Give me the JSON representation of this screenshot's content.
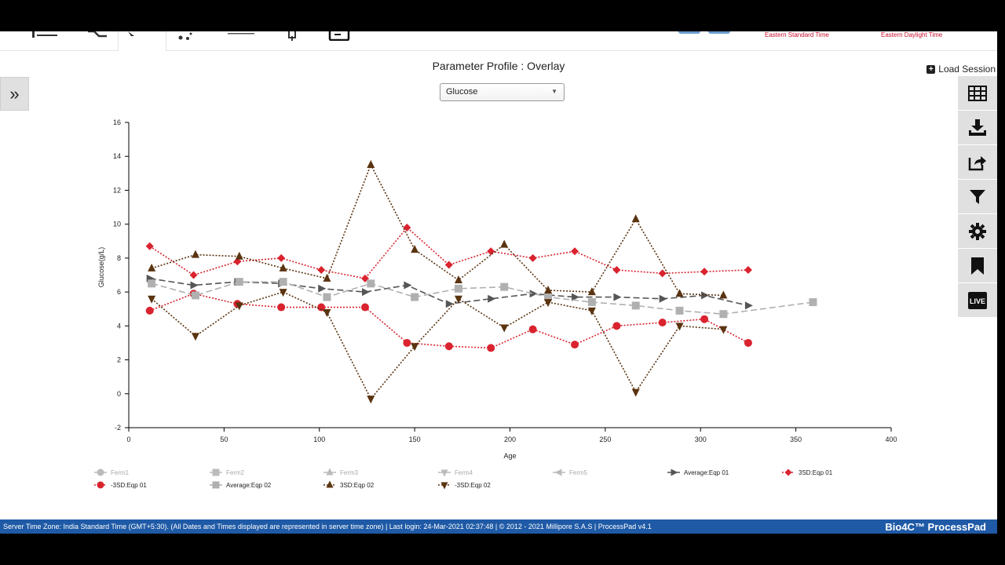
{
  "header": {
    "timezones": [
      "Eastern Standard Time",
      "Eastern Daylight Time"
    ]
  },
  "page": {
    "title": "Parameter Profile : Overlay",
    "load_session_label": "Load Session",
    "parameter_select": "Glucose"
  },
  "toolbar": {
    "buttons": [
      "table-icon",
      "download-icon",
      "share-icon",
      "filter-icon",
      "gear-icon",
      "bookmark-icon",
      "live-icon"
    ],
    "live_label": "LIVE"
  },
  "footer": {
    "text": "Server Time Zone: India Standard Time (GMT+5:30). (All Dates and Times displayed are represented in server time zone) | Last login: 24-Mar-2021 02:37:48 | © 2012 - 2021 Millipore S.A.S | ProcessPad v4.1",
    "brand": "Bio4C™ ProcessPad"
  },
  "chart_data": {
    "type": "line",
    "xlabel": "Age",
    "ylabel": "Glucose(g/L)",
    "xlim": [
      0,
      400
    ],
    "ylim": [
      -2,
      16
    ],
    "xticks": [
      0,
      50,
      100,
      150,
      200,
      250,
      300,
      350,
      400
    ],
    "yticks": [
      -2,
      0,
      2,
      4,
      6,
      8,
      10,
      12,
      14,
      16
    ],
    "grid": false,
    "legend_position": "bottom",
    "series": [
      {
        "name": "Ferm1",
        "color": "#bbbbbb",
        "marker": "circle",
        "dash": "solid",
        "hidden": true,
        "x": [],
        "y": []
      },
      {
        "name": "Ferm2",
        "color": "#bbbbbb",
        "marker": "square",
        "dash": "solid",
        "hidden": true,
        "x": [],
        "y": []
      },
      {
        "name": "Ferm3",
        "color": "#bbbbbb",
        "marker": "triangle-up",
        "dash": "solid",
        "hidden": true,
        "x": [],
        "y": []
      },
      {
        "name": "Ferm4",
        "color": "#bbbbbb",
        "marker": "triangle-down",
        "dash": "solid",
        "hidden": true,
        "x": [],
        "y": []
      },
      {
        "name": "Ferm5",
        "color": "#bbbbbb",
        "marker": "triangle-left",
        "dash": "solid",
        "hidden": true,
        "x": [],
        "y": []
      },
      {
        "name": "Average:Eqp 01",
        "color": "#555555",
        "marker": "triangle-right",
        "dash": "long",
        "x": [
          11,
          34,
          57,
          80,
          101,
          124,
          146,
          168,
          190,
          212,
          234,
          256,
          280,
          302,
          325
        ],
        "y": [
          6.8,
          6.4,
          6.6,
          6.5,
          6.2,
          6.0,
          6.4,
          5.3,
          5.6,
          5.9,
          5.7,
          5.7,
          5.6,
          5.8,
          5.2
        ]
      },
      {
        "name": "3SD:Eqp 01",
        "color": "#d9232e",
        "marker": "diamond",
        "dash": "dotted",
        "x": [
          11,
          34,
          57,
          80,
          101,
          124,
          146,
          168,
          190,
          212,
          234,
          256,
          280,
          302,
          325
        ],
        "y": [
          8.7,
          7.0,
          7.8,
          8.0,
          7.3,
          6.8,
          9.8,
          7.6,
          8.4,
          8.0,
          8.4,
          7.3,
          7.1,
          7.2,
          7.3
        ]
      },
      {
        "name": "-3SD:Eqp 01",
        "color": "#d9232e",
        "marker": "circle",
        "dash": "dotted",
        "x": [
          11,
          34,
          57,
          80,
          101,
          124,
          146,
          168,
          190,
          212,
          234,
          256,
          280,
          302,
          325
        ],
        "y": [
          4.9,
          5.9,
          5.3,
          5.1,
          5.1,
          5.1,
          3.0,
          2.8,
          2.7,
          3.8,
          2.9,
          4.0,
          4.2,
          4.4,
          3.0
        ]
      },
      {
        "name": "Average:Eqp 02",
        "color": "#b0b0b0",
        "marker": "square",
        "dash": "long",
        "x": [
          12,
          35,
          58,
          81,
          104,
          127,
          150,
          173,
          197,
          220,
          243,
          266,
          289,
          312,
          359
        ],
        "y": [
          6.5,
          5.8,
          6.6,
          6.6,
          5.7,
          6.5,
          5.7,
          6.2,
          6.3,
          5.7,
          5.4,
          5.2,
          4.9,
          4.7,
          5.4
        ]
      },
      {
        "name": "3SD:Eqp 02",
        "color": "#5a3310",
        "marker": "triangle-up",
        "dash": "dotted",
        "x": [
          12,
          35,
          58,
          81,
          104,
          127,
          150,
          173,
          197,
          220,
          243,
          266,
          289,
          312
        ],
        "y": [
          7.4,
          8.2,
          8.1,
          7.4,
          6.8,
          13.5,
          8.5,
          6.7,
          8.8,
          6.1,
          6.0,
          10.3,
          5.9,
          5.8
        ]
      },
      {
        "name": "-3SD:Eqp 02",
        "color": "#5a3310",
        "marker": "triangle-down",
        "dash": "dotted",
        "x": [
          12,
          35,
          58,
          81,
          104,
          127,
          150,
          173,
          197,
          220,
          243,
          266,
          289,
          312
        ],
        "y": [
          5.6,
          3.4,
          5.2,
          6.0,
          4.8,
          -0.3,
          2.8,
          5.6,
          3.9,
          5.4,
          4.9,
          0.1,
          4.0,
          3.8
        ]
      }
    ]
  }
}
